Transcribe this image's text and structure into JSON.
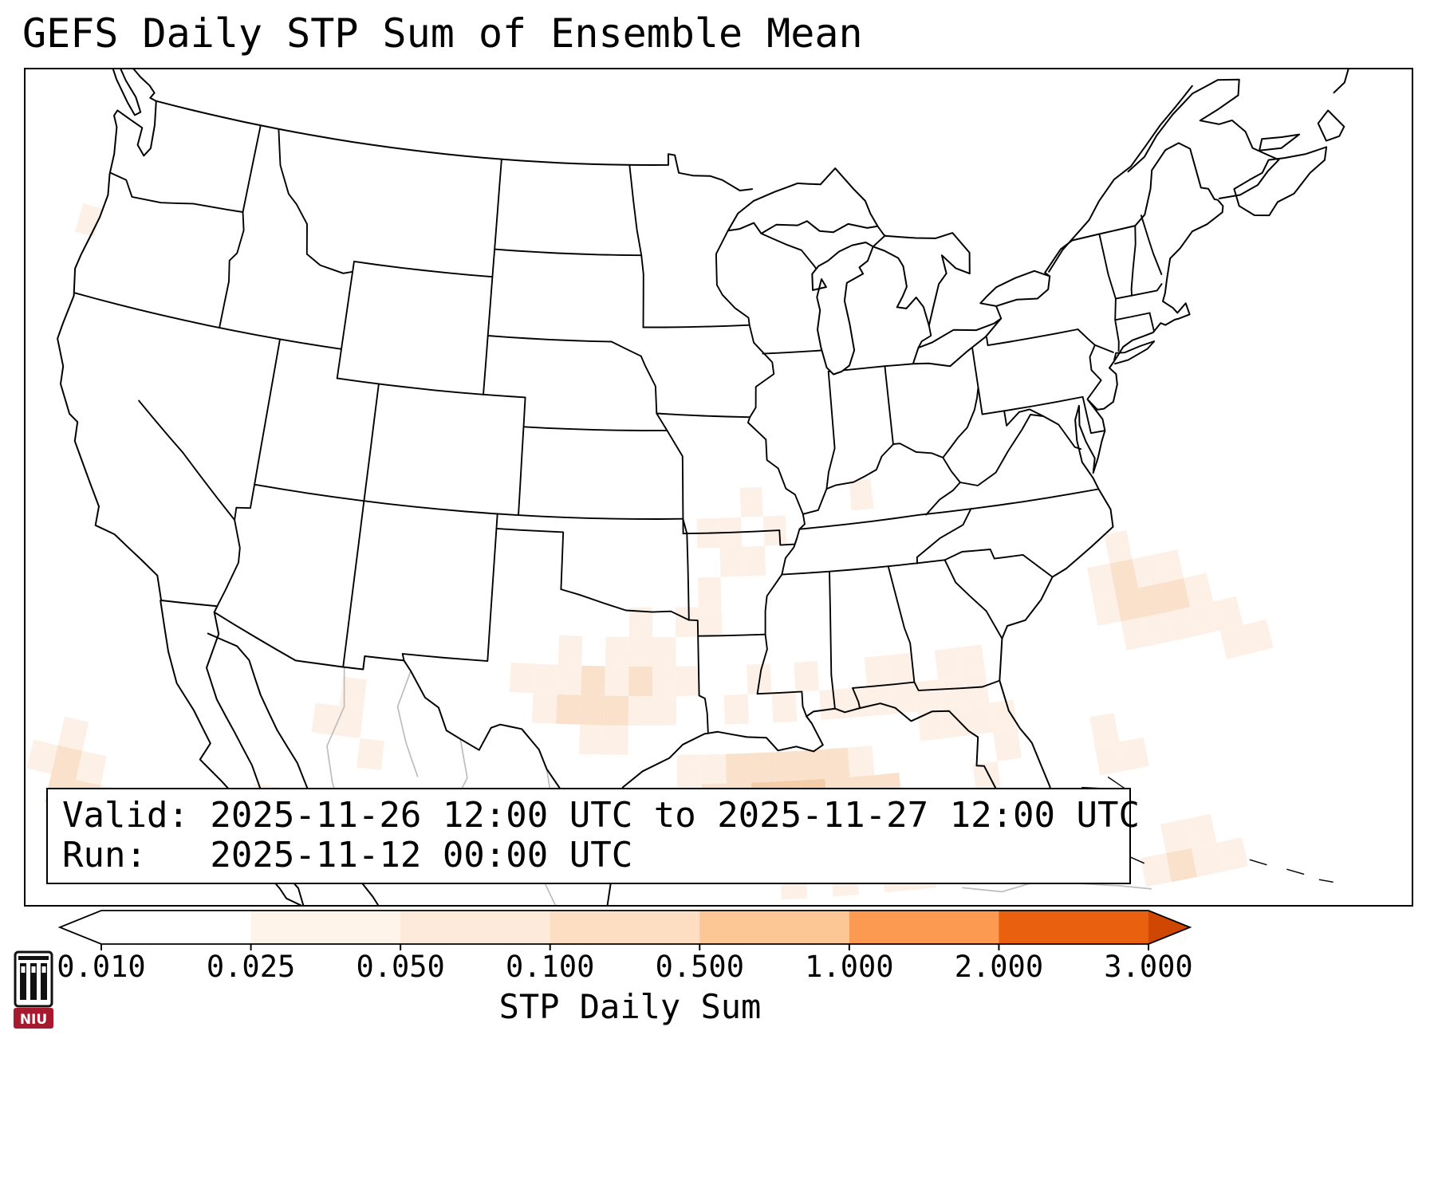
{
  "title": "GEFS Daily STP Sum of Ensemble Mean",
  "info_box": {
    "valid_label": "Valid:",
    "valid_value": "2025-11-26 12:00 UTC to 2025-11-27 12:00 UTC",
    "run_label": "Run:",
    "run_value": "2025-11-12 00:00 UTC"
  },
  "colorbar": {
    "label": "STP Daily Sum",
    "tick_labels": [
      "0.010",
      "0.025",
      "0.050",
      "0.100",
      "0.500",
      "1.000",
      "2.000",
      "3.000"
    ],
    "segment_colors": [
      "#ffffff",
      "#fef4e9",
      "#fdeada",
      "#fddec2",
      "#fdc795",
      "#fb9a50",
      "#e9600f"
    ],
    "left_arrow_color": "#ffffff",
    "right_arrow_color": "#cf4702"
  },
  "logo": {
    "text": "NIU",
    "color": "#a6192e"
  },
  "chart_data": {
    "type": "heatmap",
    "title": "GEFS Daily STP Sum of Ensemble Mean",
    "variable": "STP Daily Sum",
    "model_run": "2025-11-12 00:00 UTC",
    "valid_period": "2025-11-26 12:00 UTC to 2025-11-27 12:00 UTC",
    "colorbar_ticks": [
      0.01,
      0.025,
      0.05,
      0.1,
      0.5,
      1.0,
      2.0,
      3.0
    ],
    "value_bins": {
      "1": "0.010-0.025",
      "2": "0.025-0.050",
      "3": "0.050-0.100"
    },
    "cell_colors": {
      "1": "#fdf0e6",
      "2": "#fae1cb",
      "3": "#f6cda9"
    },
    "cells": [
      [
        -102,
        31,
        1
      ],
      [
        -101,
        30,
        1
      ],
      [
        -101,
        31,
        1
      ],
      [
        -100,
        30,
        2
      ],
      [
        -100,
        31,
        1
      ],
      [
        -100,
        32,
        1
      ],
      [
        -99,
        29,
        1
      ],
      [
        -99,
        30,
        2
      ],
      [
        -99,
        31,
        2
      ],
      [
        -98,
        29,
        1
      ],
      [
        -98,
        30,
        2
      ],
      [
        -98,
        31,
        1
      ],
      [
        -98,
        32,
        1
      ],
      [
        -97,
        30,
        1
      ],
      [
        -97,
        31,
        2
      ],
      [
        -97,
        32,
        1
      ],
      [
        -97,
        33,
        1
      ],
      [
        -96,
        30,
        1
      ],
      [
        -96,
        31,
        1
      ],
      [
        -96,
        32,
        1
      ],
      [
        -95,
        31,
        1
      ],
      [
        -95,
        33,
        1
      ],
      [
        -94,
        33,
        1
      ],
      [
        -94,
        34,
        1
      ],
      [
        -94,
        36,
        1
      ],
      [
        -93,
        35,
        1
      ],
      [
        -93,
        36,
        1
      ],
      [
        -92,
        35,
        1
      ],
      [
        -92,
        37,
        1
      ],
      [
        -91,
        36,
        1
      ],
      [
        -87,
        37,
        1
      ],
      [
        -95,
        27,
        1
      ],
      [
        -95,
        28,
        1
      ],
      [
        -94,
        27,
        2
      ],
      [
        -94,
        28,
        1
      ],
      [
        -93,
        26,
        1
      ],
      [
        -93,
        27,
        2
      ],
      [
        -93,
        28,
        2
      ],
      [
        -92,
        26,
        2
      ],
      [
        -92,
        27,
        3
      ],
      [
        -92,
        28,
        2
      ],
      [
        -91,
        26,
        2
      ],
      [
        -91,
        27,
        3
      ],
      [
        -91,
        28,
        2
      ],
      [
        -91,
        24,
        1
      ],
      [
        -90,
        25,
        1
      ],
      [
        -90,
        26,
        2
      ],
      [
        -90,
        27,
        3
      ],
      [
        -90,
        28,
        2
      ],
      [
        -89,
        24,
        1
      ],
      [
        -89,
        25,
        1
      ],
      [
        -89,
        26,
        2
      ],
      [
        -89,
        27,
        2
      ],
      [
        -89,
        28,
        2
      ],
      [
        -88,
        25,
        1
      ],
      [
        -88,
        26,
        2
      ],
      [
        -88,
        27,
        2
      ],
      [
        -88,
        28,
        1
      ],
      [
        -87,
        24,
        1
      ],
      [
        -87,
        25,
        1
      ],
      [
        -87,
        26,
        1
      ],
      [
        -87,
        27,
        2
      ],
      [
        -86,
        24,
        1
      ],
      [
        -86,
        25,
        1
      ],
      [
        -86,
        26,
        1
      ],
      [
        -85,
        25,
        1
      ],
      [
        -85,
        26,
        1
      ],
      [
        -84,
        24,
        1
      ],
      [
        -93,
        30,
        1
      ],
      [
        -92,
        31,
        1
      ],
      [
        -91,
        30,
        1
      ],
      [
        -90,
        31,
        1
      ],
      [
        -89,
        30,
        1
      ],
      [
        -88,
        30,
        1
      ],
      [
        -87,
        30,
        1
      ],
      [
        -87,
        31,
        1
      ],
      [
        -86,
        30,
        1
      ],
      [
        -86,
        31,
        1
      ],
      [
        -85,
        29,
        1
      ],
      [
        -85,
        30,
        1
      ],
      [
        -84,
        29,
        1
      ],
      [
        -84,
        30,
        1
      ],
      [
        -84,
        31,
        1
      ],
      [
        -83,
        27,
        1
      ],
      [
        -83,
        29,
        1
      ],
      [
        -83,
        30,
        1
      ],
      [
        -83,
        31,
        1
      ],
      [
        -82,
        28,
        1
      ],
      [
        -82,
        29,
        1
      ],
      [
        -78,
        27,
        1
      ],
      [
        -78,
        28,
        1
      ],
      [
        -77,
        27,
        1
      ],
      [
        -77,
        32,
        1
      ],
      [
        -77,
        33,
        1
      ],
      [
        -76,
        31,
        1
      ],
      [
        -76,
        32,
        2
      ],
      [
        -76,
        33,
        2
      ],
      [
        -76,
        34,
        1
      ],
      [
        -75,
        31,
        1
      ],
      [
        -75,
        32,
        2
      ],
      [
        -75,
        33,
        1
      ],
      [
        -74,
        31,
        1
      ],
      [
        -74,
        32,
        2
      ],
      [
        -74,
        33,
        1
      ],
      [
        -73,
        31,
        1
      ],
      [
        -73,
        32,
        1
      ],
      [
        -72,
        30,
        1
      ],
      [
        -72,
        31,
        1
      ],
      [
        -71,
        30,
        1
      ],
      [
        -77,
        23,
        1
      ],
      [
        -76,
        23,
        2
      ],
      [
        -76,
        24,
        1
      ],
      [
        -75,
        23,
        1
      ],
      [
        -75,
        24,
        1
      ],
      [
        -74,
        23,
        1
      ],
      [
        -125,
        44,
        1
      ],
      [
        -121,
        26,
        1
      ],
      [
        -120,
        25,
        2
      ],
      [
        -120,
        26,
        2
      ],
      [
        -120,
        27,
        1
      ],
      [
        -119,
        24,
        1
      ],
      [
        -119,
        25,
        2
      ],
      [
        -119,
        26,
        1
      ],
      [
        -118,
        24,
        1
      ],
      [
        -118,
        25,
        1
      ],
      [
        -112,
        26,
        1
      ],
      [
        -111,
        25,
        1
      ],
      [
        -110,
        29,
        1
      ],
      [
        -109,
        29,
        1
      ],
      [
        -109,
        30,
        1
      ],
      [
        -108,
        28,
        1
      ]
    ],
    "regions_summary": [
      {
        "region": "central Texas",
        "peak_value": "~0.05"
      },
      {
        "region": "northwestern Gulf of Mexico",
        "peak_value": "~0.1"
      },
      {
        "region": "central Gulf Coast (LA/MS/AL/FL panhandle)",
        "peak_value": "~0.025"
      },
      {
        "region": "western Atlantic off the Southeast coast",
        "peak_value": "~0.05"
      },
      {
        "region": "Pacific southwest of Baja California",
        "peak_value": "~0.05"
      }
    ]
  }
}
